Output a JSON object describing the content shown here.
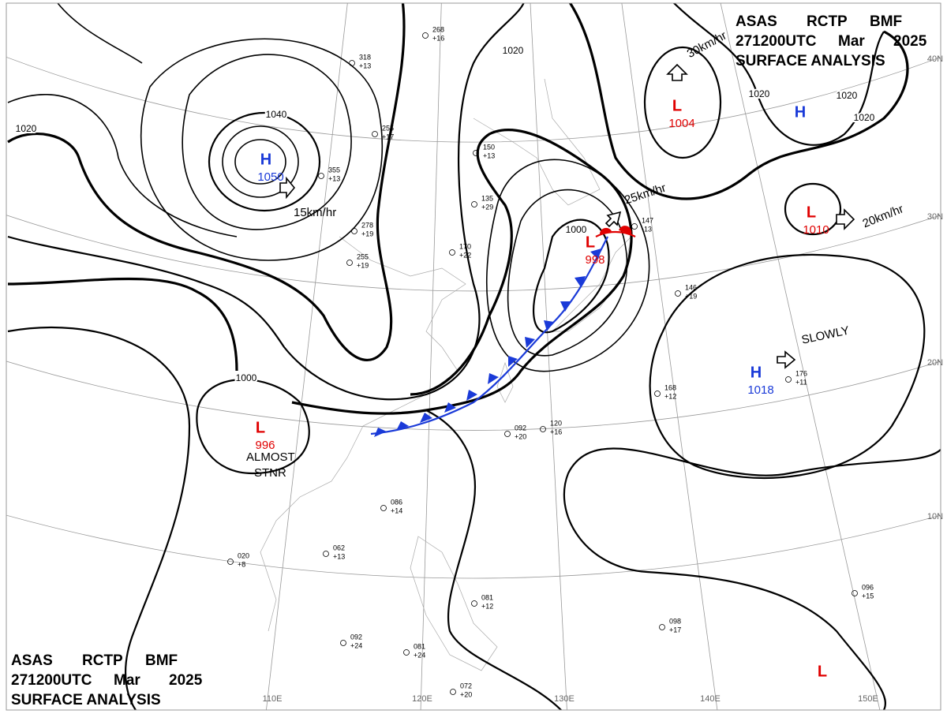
{
  "header": {
    "agency": "ASAS",
    "station": "RCTP",
    "office": "BMF",
    "time": "271200UTC",
    "month": "Mar",
    "year": "2025",
    "product": "SURFACE ANALYSIS"
  },
  "centers": [
    {
      "symbol": "H",
      "pressure": "1050"
    },
    {
      "symbol": "L",
      "pressure": "1004"
    },
    {
      "symbol": "H"
    },
    {
      "symbol": "L",
      "pressure": "1010"
    },
    {
      "symbol": "L",
      "pressure": "998"
    },
    {
      "symbol": "H",
      "pressure": "1018"
    },
    {
      "symbol": "L",
      "pressure": "996"
    },
    {
      "symbol": "L"
    }
  ],
  "motions": [
    "15km/hr",
    "30km/hr",
    "25km/hr",
    "20km/hr",
    "SLOWLY"
  ],
  "note": [
    "ALMOST",
    "STNR"
  ],
  "isobar_labels": [
    "1040",
    "1020",
    "1020",
    "1020",
    "1020",
    "1020",
    "1000",
    "1000"
  ],
  "longitudes": [
    "110E",
    "120E",
    "130E",
    "140E",
    "150E"
  ],
  "latitudes": [
    "40N",
    "30N",
    "20N",
    "10N"
  ],
  "stations": [
    {
      "pressure": "268",
      "tendency": "+16"
    },
    {
      "pressure": "318",
      "tendency": "+13"
    },
    {
      "pressure": "355",
      "tendency": "+13"
    },
    {
      "pressure": "255",
      "tendency": "+17"
    },
    {
      "pressure": "278",
      "tendency": "+19"
    },
    {
      "pressure": "255",
      "tendency": "+19"
    },
    {
      "pressure": "150",
      "tendency": "+13"
    },
    {
      "pressure": "135",
      "tendency": "+29"
    },
    {
      "pressure": "170",
      "tendency": "+22"
    },
    {
      "pressure": "147",
      "tendency": "-13"
    },
    {
      "pressure": "146",
      "tendency": "+19"
    },
    {
      "pressure": "168",
      "tendency": "+12"
    },
    {
      "pressure": "176",
      "tendency": "+11"
    },
    {
      "pressure": "092",
      "tendency": "+20"
    },
    {
      "pressure": "120",
      "tendency": "+16"
    },
    {
      "pressure": "086",
      "tendency": "+14"
    },
    {
      "pressure": "062",
      "tendency": "+13"
    },
    {
      "pressure": "020",
      "tendency": "+8"
    },
    {
      "pressure": "092",
      "tendency": "+24"
    },
    {
      "pressure": "081",
      "tendency": "+24"
    },
    {
      "pressure": "072",
      "tendency": "+20"
    },
    {
      "pressure": "096",
      "tendency": "+15"
    },
    {
      "pressure": "098",
      "tendency": "+17"
    },
    {
      "pressure": "081",
      "tendency": "+12"
    }
  ]
}
